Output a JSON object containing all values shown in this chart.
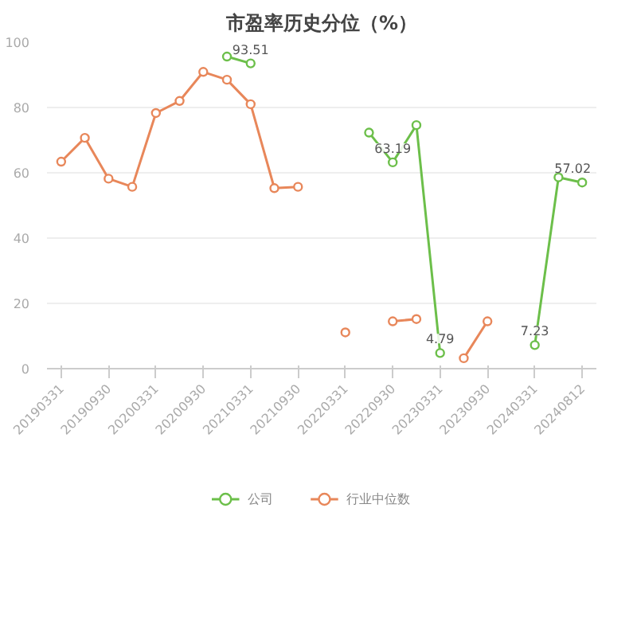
{
  "chart_data": {
    "type": "line",
    "title": "市盈率历史分位（%）",
    "categories": [
      "20190331",
      null,
      "20190930",
      null,
      "20200331",
      null,
      "20200930",
      null,
      "20210331",
      null,
      "20210930",
      null,
      "20220331",
      null,
      "20220930",
      null,
      "20230331",
      null,
      "20230930",
      null,
      "20240331",
      null,
      "20240812"
    ],
    "series": [
      {
        "name": "公司",
        "color": "#6cbf4a",
        "values": [
          null,
          null,
          null,
          null,
          null,
          null,
          null,
          95.6,
          93.51,
          null,
          null,
          null,
          null,
          72.3,
          63.19,
          74.6,
          4.79,
          null,
          null,
          null,
          7.23,
          58.6,
          57.02
        ],
        "value_labels": [
          null,
          null,
          null,
          null,
          null,
          null,
          null,
          null,
          "93.51",
          null,
          null,
          null,
          null,
          null,
          "63.19",
          null,
          "4.79",
          null,
          null,
          null,
          "7.23",
          null,
          "57.02"
        ]
      },
      {
        "name": "行业中位数",
        "color": "#e8875a",
        "values": [
          63.4,
          70.7,
          58.2,
          55.7,
          78.3,
          82.0,
          90.9,
          88.5,
          81.0,
          55.3,
          55.7,
          null,
          11.1,
          null,
          14.5,
          15.2,
          null,
          3.2,
          14.5,
          null,
          null,
          null,
          null
        ]
      }
    ],
    "ylim": [
      0,
      100
    ],
    "yticks": [
      0,
      20,
      40,
      60,
      80,
      100
    ],
    "grid": "y",
    "legend": "bottom",
    "marker": "circle",
    "line_style": "solid"
  }
}
